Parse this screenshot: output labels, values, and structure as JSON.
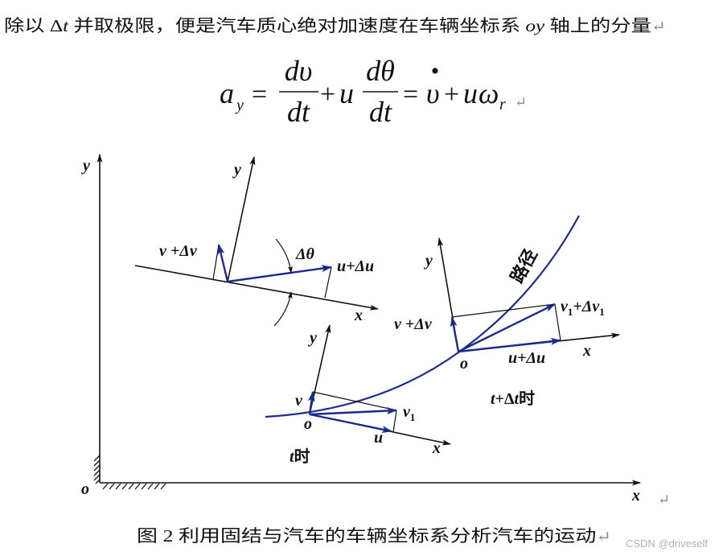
{
  "paragraph": {
    "part1": "除以 ",
    "delta_symbol": "Δ",
    "delta_var": "t",
    "part2": " 并取极限，便是汽车质心绝对加速度在车辆坐标系 ",
    "axis_name": "oy",
    "part3": " 轴上的分量",
    "return_mark": "↵"
  },
  "equation": {
    "a": "a",
    "a_sub": "y",
    "equals_1": "=",
    "frac1_num": "dυ",
    "frac1_den": "dt",
    "plus_1": "+",
    "u_1": "u",
    "frac2_num": "dθ",
    "frac2_den": "dt",
    "equals_2": "=",
    "v_dot": "υ",
    "plus_2": "+",
    "u_2": "u",
    "omega": "ω",
    "omega_sub": "r",
    "return_mark": "↵"
  },
  "figure": {
    "global_axes": {
      "y_label": "y",
      "x_label": "x",
      "origin_label": "o",
      "x_return_mark": "↵"
    },
    "rotation_frame": {
      "y_label": "y",
      "x_label": "x",
      "lateral_label": "v +Δv",
      "longitudinal_label": "u+Δu",
      "angle_label": "Δθ"
    },
    "frame_at_t": {
      "y_label": "y",
      "x_label": "x",
      "origin_label": "o",
      "lateral_label": "v",
      "longitudinal_label": "u",
      "resultant_label": "v",
      "resultant_sub": "1",
      "time_var": "t",
      "time_suffix": "时"
    },
    "frame_at_t_dt": {
      "y_label": "y",
      "x_label": "x",
      "origin_label": "o",
      "lateral_label": "v +Δv",
      "longitudinal_label": "u+Δu",
      "resultant_label": "v",
      "resultant_sub": "1",
      "resultant_delta": "+Δv",
      "resultant_sub2": "1",
      "time_var": "t",
      "time_delta": "+Δ",
      "time_var2": "t",
      "time_suffix": "时"
    },
    "path_label": "路径"
  },
  "caption": {
    "text": "图 2 利用固结与汽车的车辆坐标系分析汽车的运动",
    "return_mark": "↵"
  },
  "watermark": "CSDN @driveself",
  "colors": {
    "vector": "#1b2a8c",
    "path": "#1b2a8c",
    "ink": "#111111",
    "return_mark": "#8c8c8c",
    "watermark": "#b0b0b0"
  }
}
